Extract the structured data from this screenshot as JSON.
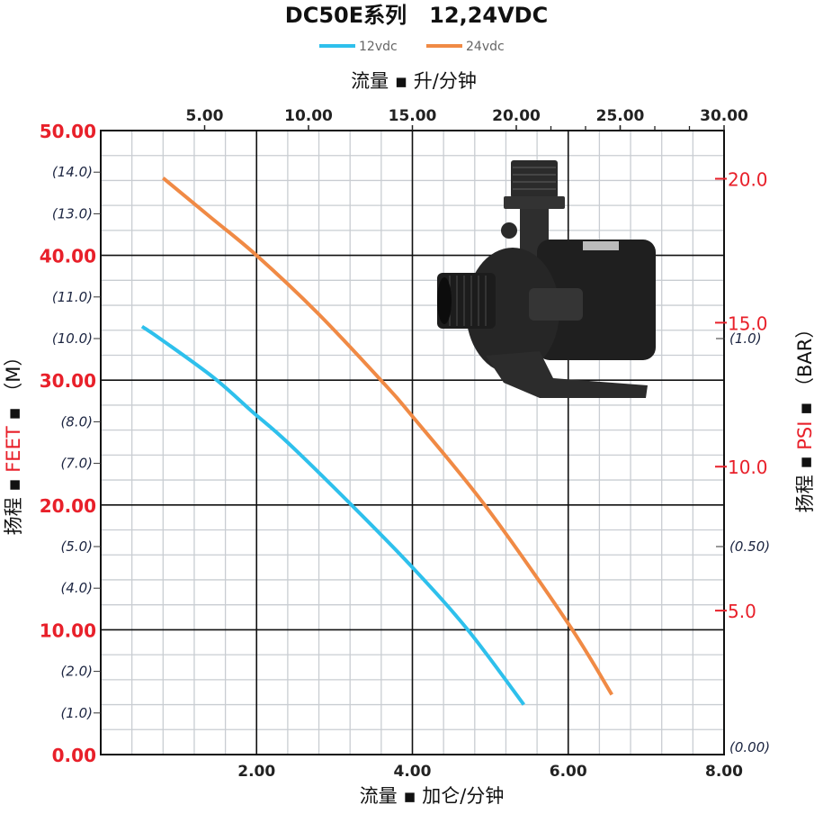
{
  "chart_data": {
    "type": "line",
    "title": "DC50E系列   12,24VDC",
    "legend_position": "top-center",
    "grid": true,
    "x_bottom": {
      "label": "流量 ▪ 加仑/分钟",
      "ticks": [
        2,
        4,
        6,
        8
      ],
      "tick_labels": [
        "2.00",
        "4.00",
        "6.00",
        "8.00"
      ],
      "range": [
        0,
        8
      ]
    },
    "x_top": {
      "label": "流量 ▪ 升/分钟",
      "ticks": [
        5,
        10,
        15,
        20,
        25,
        30
      ],
      "tick_labels": [
        "5.00",
        "10.00",
        "15.00",
        "20.00",
        "25.00",
        "30.00"
      ],
      "range": [
        0,
        30
      ]
    },
    "y_left": {
      "label_prefix": "扬程 ▪ ",
      "label_unit": "FEET",
      "label_suffix": " ▪ （M）",
      "range": [
        0,
        50
      ],
      "ticks": [
        0,
        10,
        20,
        30,
        40,
        50
      ],
      "tick_labels": [
        "0.00",
        "10.00",
        "20.00",
        "30.00",
        "40.00",
        "50.00"
      ],
      "secondary_ticks_m": [
        14,
        13,
        11,
        10,
        8,
        7,
        5,
        4,
        2,
        1
      ],
      "secondary_tick_labels": [
        "(14.0)",
        "(13.0)",
        "(11.0)",
        "(10.0)",
        "(8.0)",
        "(7.0)",
        "(5.0)",
        "(4.0)",
        "(2.0)",
        "(1.0)"
      ]
    },
    "y_right": {
      "label_prefix": "扬程 ▪ ",
      "label_unit": "PSI",
      "label_suffix": " ▪ （BAR）",
      "ticks_psi": [
        20,
        15,
        10,
        5
      ],
      "tick_labels_psi": [
        "20.0",
        "15.0",
        "10.0",
        "5.0"
      ],
      "ticks_bar": [
        1.0,
        0.5,
        0
      ],
      "tick_labels_bar": [
        "(1.0)",
        "(0.50)",
        "(0.00)"
      ]
    },
    "series": [
      {
        "name": "12vdc",
        "color": "#2ec0ec",
        "x": [
          0.53,
          0.79,
          1.45,
          1.94,
          2.4,
          3.25,
          4.0,
          4.71,
          5.43
        ],
        "y": [
          34.3,
          33.2,
          30.2,
          27.5,
          25.0,
          19.8,
          15.0,
          10.0,
          4.0
        ]
      },
      {
        "name": "24vdc",
        "color": "#f08a45",
        "x": [
          0.8,
          1.4,
          2.0,
          2.78,
          3.61,
          4.0,
          4.94,
          6.0,
          6.56
        ],
        "y": [
          46.2,
          43.1,
          40.0,
          35.4,
          29.9,
          27.1,
          19.9,
          10.5,
          4.8
        ]
      }
    ]
  },
  "colors": {
    "accent_red": "#e8202a",
    "grid_major": "#111111",
    "grid_minor": "#c9cdd2"
  },
  "image": {
    "icon": "water-pump-photo"
  }
}
